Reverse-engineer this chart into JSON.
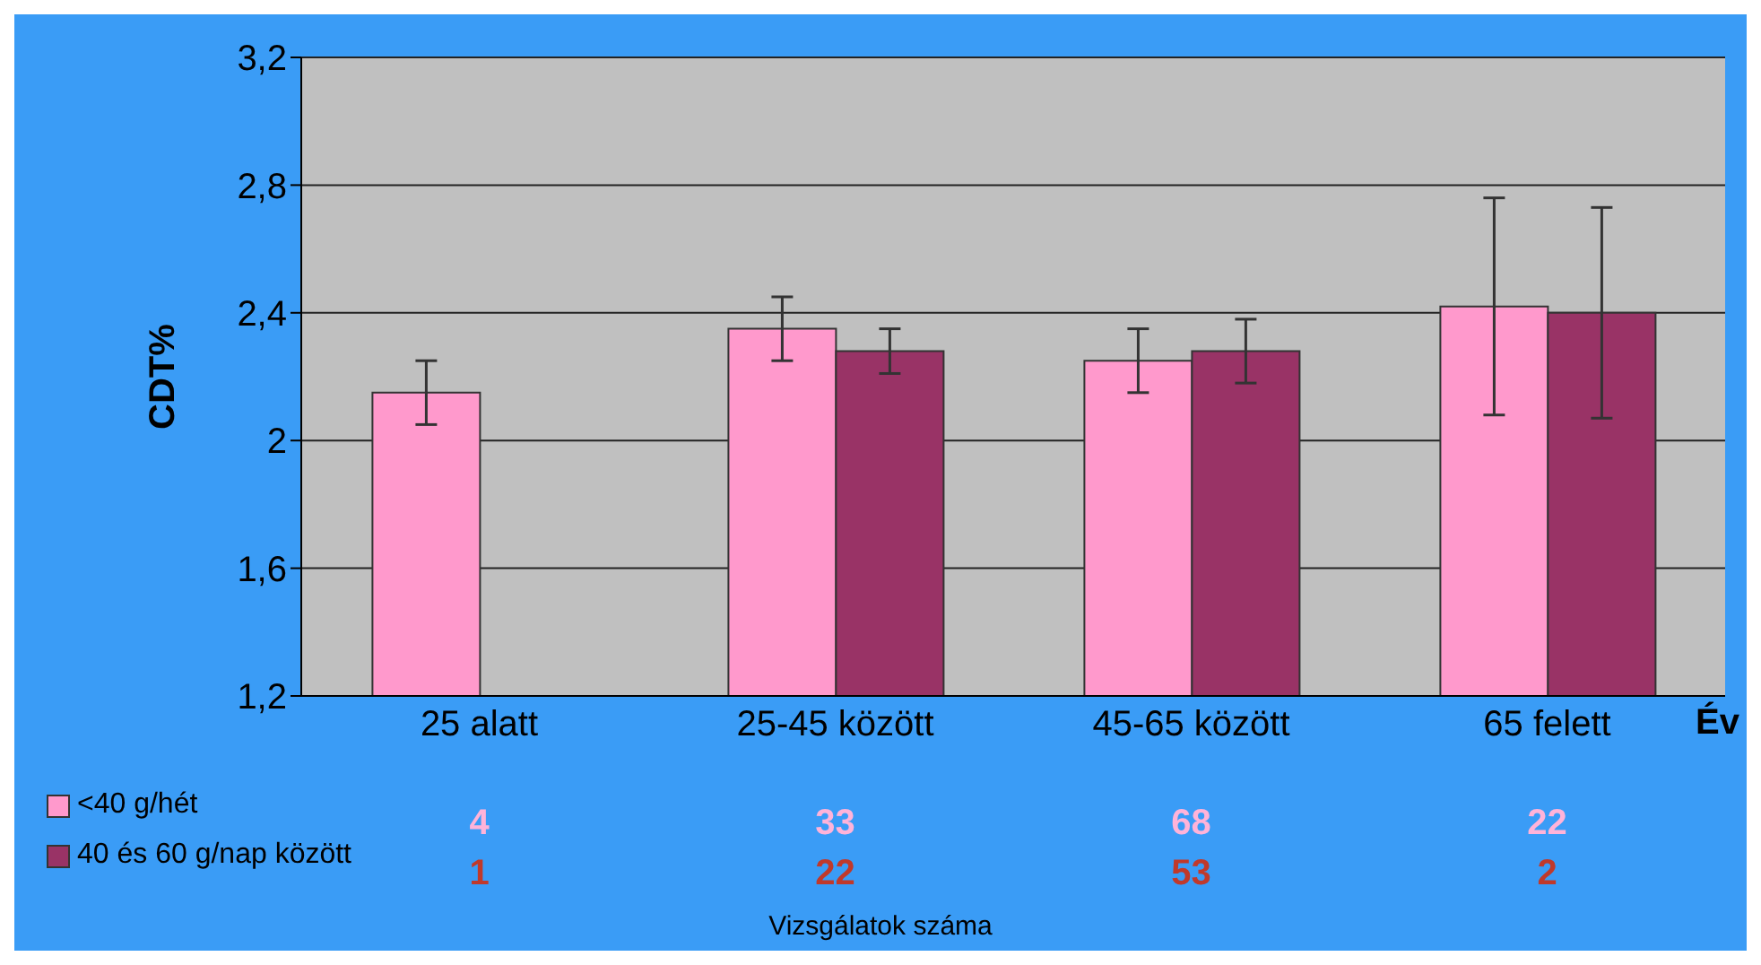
{
  "chart_data": {
    "type": "bar",
    "ylabel": "CDT%",
    "xlabel": "Év",
    "categories": [
      "25 alatt",
      "25-45 között",
      "45-65 között",
      "65 felett"
    ],
    "series": [
      {
        "name": "<40 g/hét",
        "color": "#ff99cc",
        "values": [
          2.15,
          2.35,
          2.25,
          2.42
        ],
        "errors": [
          0.1,
          0.1,
          0.1,
          0.34
        ]
      },
      {
        "name": "40 és 60 g/nap között",
        "color": "#993366",
        "values": [
          null,
          2.28,
          2.28,
          2.4
        ],
        "errors": [
          null,
          0.07,
          0.1,
          0.33
        ]
      }
    ],
    "ylim": [
      1.2,
      3.2
    ],
    "yticks": [
      {
        "value": 1.2,
        "label": "1,2"
      },
      {
        "value": 1.6,
        "label": "1,6"
      },
      2,
      {
        "value": 2.4,
        "label": "2,4"
      },
      {
        "value": 2.8,
        "label": "2,8"
      },
      {
        "value": 3.2,
        "label": "3,2"
      }
    ],
    "grid": "y",
    "legend": "bottom left",
    "annotations": [
      "4",
      "33",
      "68",
      "22",
      "1",
      "22",
      "53",
      "2",
      "Vizsgálatok száma"
    ]
  }
}
